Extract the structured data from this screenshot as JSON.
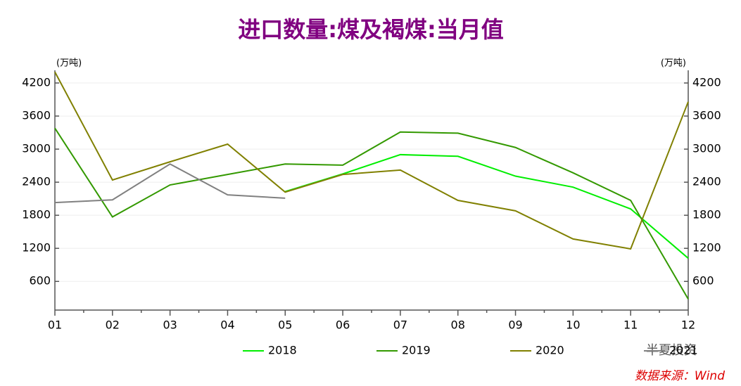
{
  "chart_data": {
    "type": "line",
    "title": "进口数量:煤及褐煤:当月值",
    "y_unit": "(万吨)",
    "y2_unit": "(万吨)",
    "categories": [
      "01",
      "02",
      "03",
      "04",
      "05",
      "06",
      "07",
      "08",
      "09",
      "10",
      "11",
      "12"
    ],
    "series": [
      {
        "name": "2018",
        "color": "#00ee00",
        "values": [
          null,
          null,
          null,
          null,
          2230,
          2550,
          2900,
          2870,
          2510,
          2310,
          1915,
          1020
        ]
      },
      {
        "name": "2019",
        "color": "#339900",
        "values": [
          3380,
          1770,
          2350,
          2540,
          2730,
          2710,
          3310,
          3290,
          3030,
          2570,
          2070,
          280
        ]
      },
      {
        "name": "2020",
        "color": "#808000",
        "values": [
          4400,
          2440,
          2770,
          3090,
          2220,
          2540,
          2620,
          2070,
          1880,
          1370,
          1190,
          3860
        ]
      },
      {
        "name": "2021",
        "color": "#808080",
        "values": [
          2030,
          2080,
          2730,
          2170,
          2110,
          null,
          null,
          null,
          null,
          null,
          null,
          null
        ]
      }
    ],
    "ylim": [
      80,
      4430
    ],
    "yticks": [
      600,
      1200,
      1800,
      2400,
      3000,
      3600,
      4200
    ],
    "y2lim": [
      80,
      4430
    ],
    "y2ticks": [
      600,
      1200,
      1800,
      2400,
      3000,
      3600,
      4200
    ],
    "grid": true,
    "legend": "bottom",
    "watermark": "半夏投资",
    "source": "数据来源：Wind"
  }
}
